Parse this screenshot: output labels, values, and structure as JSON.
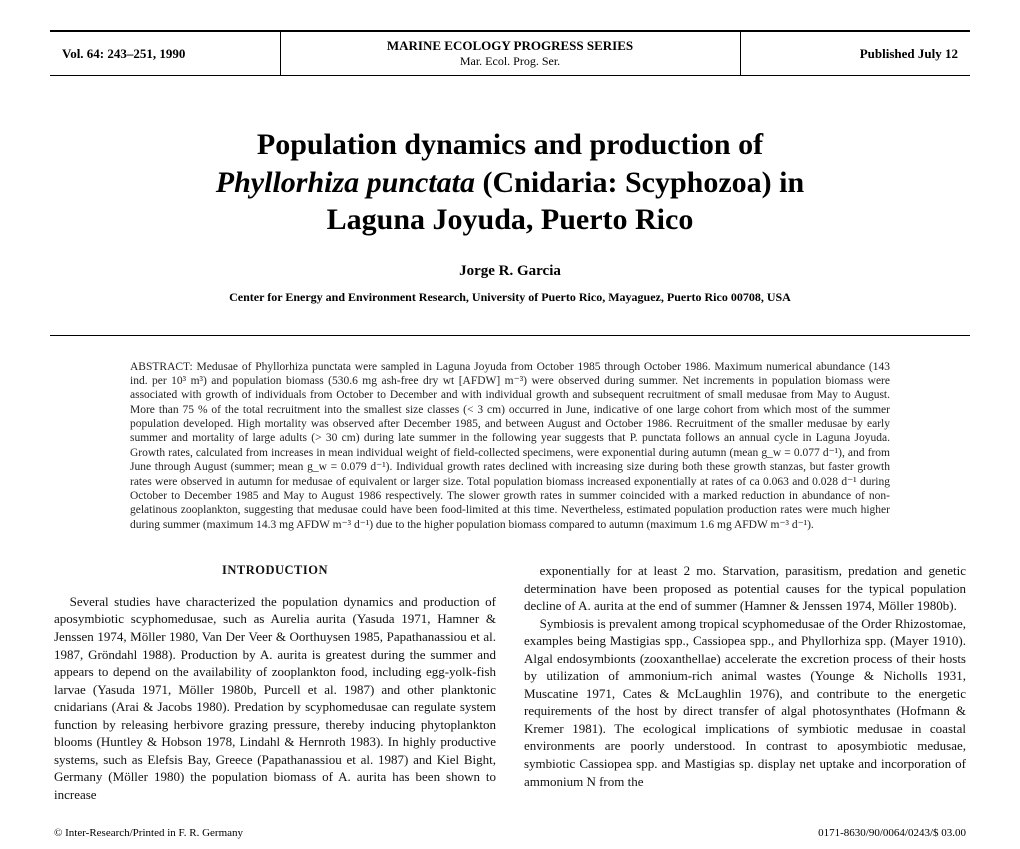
{
  "header": {
    "vol": "Vol. 64: 243–251, 1990",
    "journal": "MARINE ECOLOGY PROGRESS SERIES",
    "journal_sub": "Mar. Ecol. Prog. Ser.",
    "published": "Published July 12"
  },
  "title": {
    "line1": "Population dynamics and production of",
    "species": "Phyllorhiza punctata",
    "line2_rest": " (Cnidaria: Scyphozoa) in",
    "line3": "Laguna Joyuda, Puerto Rico"
  },
  "author": "Jorge R. Garcia",
  "affiliation": "Center for Energy and Environment Research, University of Puerto Rico, Mayaguez, Puerto Rico 00708, USA",
  "abstract": {
    "label": "ABSTRACT:",
    "text": "Medusae of Phyllorhiza punctata were sampled in Laguna Joyuda from October 1985 through October 1986. Maximum numerical abundance (143 ind. per 10³ m³) and population biomass (530.6 mg ash-free dry wt [AFDW] m⁻³) were observed during summer. Net increments in population biomass were associated with growth of individuals from October to December and with individual growth and subsequent recruitment of small medusae from May to August. More than 75 % of the total recruitment into the smallest size classes (< 3 cm) occurred in June, indicative of one large cohort from which most of the summer population developed. High mortality was observed after December 1985, and between August and October 1986. Recruitment of the smaller medusae by early summer and mortality of large adults (> 30 cm) during late summer in the following year suggests that P. punctata follows an annual cycle in Laguna Joyuda. Growth rates, calculated from increases in mean individual weight of field-collected specimens, were exponential during autumn (mean g_w = 0.077 d⁻¹), and from June through August (summer; mean g_w = 0.079 d⁻¹). Individual growth rates declined with increasing size during both these growth stanzas, but faster growth rates were observed in autumn for medusae of equivalent or larger size. Total population biomass increased exponentially at rates of ca 0.063 and 0.028 d⁻¹ during October to December 1985 and May to August 1986 respectively. The slower growth rates in summer coincided with a marked reduction in abundance of non-gelatinous zooplankton, suggesting that medusae could have been food-limited at this time. Nevertheless, estimated population production rates were much higher during summer (maximum 14.3 mg AFDW m⁻³ d⁻¹) due to the higher population biomass compared to autumn (maximum 1.6 mg AFDW m⁻³ d⁻¹)."
  },
  "intro_heading": "INTRODUCTION",
  "col_left": "Several studies have characterized the population dynamics and production of aposymbiotic scyphomedusae, such as Aurelia aurita (Yasuda 1971, Hamner & Jenssen 1974, Möller 1980, Van Der Veer & Oorthuysen 1985, Papathanassiou et al. 1987, Gröndahl 1988). Production by A. aurita is greatest during the summer and appears to depend on the availability of zooplankton food, including egg-yolk-fish larvae (Yasuda 1971, Möller 1980b, Purcell et al. 1987) and other planktonic cnidarians (Arai & Jacobs 1980). Predation by scyphomedusae can regulate system function by releasing herbivore grazing pressure, thereby inducing phytoplankton blooms (Huntley & Hobson 1978, Lindahl & Hernroth 1983). In highly productive systems, such as Elefsis Bay, Greece (Papathanassiou et al. 1987) and Kiel Bight, Germany (Möller 1980) the population biomass of A. aurita has been shown to increase",
  "col_right": "exponentially for at least 2 mo. Starvation, parasitism, predation and genetic determination have been proposed as potential causes for the typical population decline of A. aurita at the end of summer (Hamner & Jenssen 1974, Möller 1980b).\nSymbiosis is prevalent among tropical scyphomedusae of the Order Rhizostomae, examples being Mastigias spp., Cassiopea spp., and Phyllorhiza spp. (Mayer 1910). Algal endosymbionts (zooxanthellae) accelerate the excretion process of their hosts by utilization of ammonium-rich animal wastes (Younge & Nicholls 1931, Muscatine 1971, Cates & McLaughlin 1976), and contribute to the energetic requirements of the host by direct transfer of algal photosynthates (Hofmann & Kremer 1981). The ecological implications of symbiotic medusae in coastal environments are poorly understood. In contrast to aposymbiotic medusae, symbiotic Cassiopea spp. and Mastigias sp. display net uptake and incorporation of ammonium N from the",
  "footer": {
    "left": "© Inter-Research/Printed in F. R. Germany",
    "right": "0171-8630/90/0064/0243/$ 03.00"
  }
}
